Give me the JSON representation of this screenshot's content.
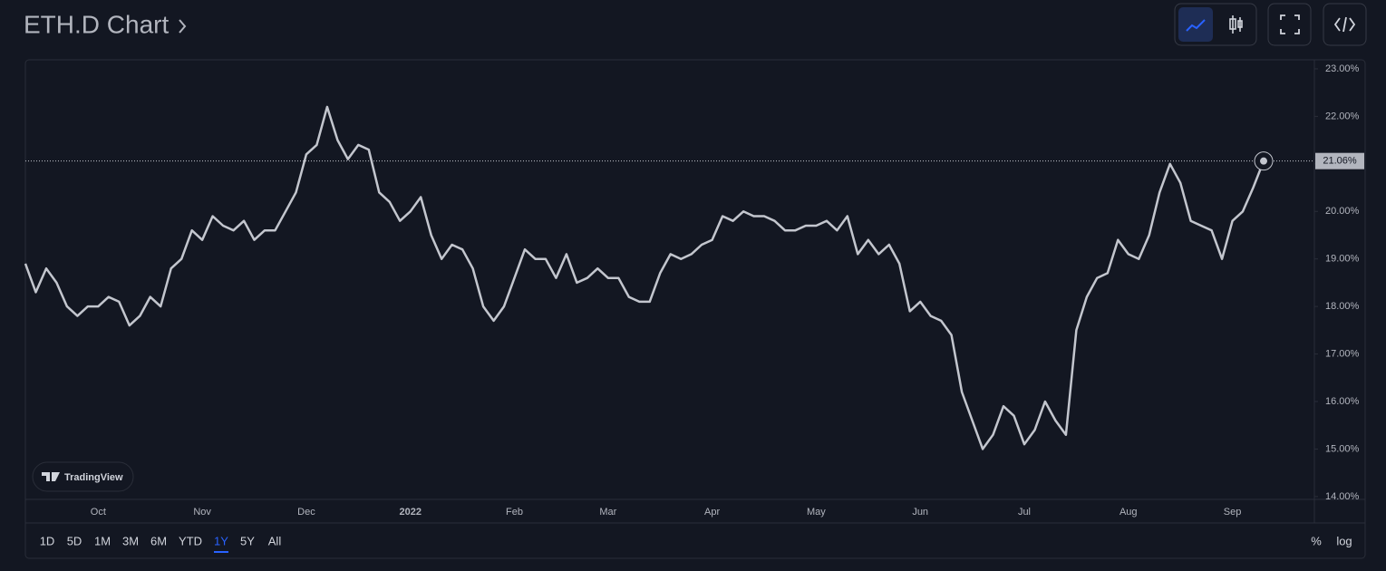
{
  "header": {
    "title": "ETH.D Chart"
  },
  "chart_data": {
    "type": "line",
    "categories": [
      null,
      null,
      null,
      null,
      null,
      null,
      null,
      "Oct",
      null,
      null,
      null,
      null,
      null,
      null,
      null,
      null,
      null,
      "Nov",
      null,
      null,
      null,
      null,
      null,
      null,
      null,
      null,
      null,
      "Dec",
      null,
      null,
      null,
      null,
      null,
      null,
      null,
      null,
      null,
      "2022",
      null,
      null,
      null,
      null,
      null,
      null,
      null,
      null,
      null,
      "Feb",
      null,
      null,
      null,
      null,
      null,
      null,
      null,
      null,
      "Mar",
      null,
      null,
      null,
      null,
      null,
      null,
      null,
      null,
      null,
      "Apr",
      null,
      null,
      null,
      null,
      null,
      null,
      null,
      null,
      null,
      "May",
      null,
      null,
      null,
      null,
      null,
      null,
      null,
      null,
      null,
      "Jun",
      null,
      null,
      null,
      null,
      null,
      null,
      null,
      null,
      null,
      "Jul",
      null,
      null,
      null,
      null,
      null,
      null,
      null,
      null,
      null,
      "Aug",
      null,
      null,
      null,
      null,
      null,
      null,
      null,
      null,
      null,
      "Sep",
      null,
      null,
      null
    ],
    "values": [
      18.9,
      18.3,
      18.8,
      18.5,
      18.0,
      17.8,
      18.0,
      18.0,
      18.2,
      18.1,
      17.6,
      17.8,
      18.2,
      18.0,
      18.8,
      19.0,
      19.6,
      19.4,
      19.9,
      19.7,
      19.6,
      19.8,
      19.4,
      19.6,
      19.6,
      20.0,
      20.4,
      21.2,
      21.4,
      22.2,
      21.5,
      21.1,
      21.4,
      21.3,
      20.4,
      20.2,
      19.8,
      20.0,
      20.3,
      19.5,
      19.0,
      19.3,
      19.2,
      18.8,
      18.0,
      17.7,
      18.0,
      18.6,
      19.2,
      19.0,
      19.0,
      18.6,
      19.1,
      18.5,
      18.6,
      18.8,
      18.6,
      18.6,
      18.2,
      18.1,
      18.1,
      18.7,
      19.1,
      19.0,
      19.1,
      19.3,
      19.4,
      19.9,
      19.8,
      20.0,
      19.9,
      19.9,
      19.8,
      19.6,
      19.6,
      19.7,
      19.7,
      19.8,
      19.6,
      19.9,
      19.1,
      19.4,
      19.1,
      19.3,
      18.9,
      17.9,
      18.1,
      17.8,
      17.7,
      17.4,
      16.2,
      15.6,
      15.0,
      15.3,
      15.9,
      15.7,
      15.1,
      15.4,
      16.0,
      15.6,
      15.3,
      17.5,
      18.2,
      18.6,
      18.7,
      19.4,
      19.1,
      19.0,
      19.5,
      20.4,
      21.0,
      20.6,
      19.8,
      19.7,
      19.6,
      19.0,
      19.8,
      20.0,
      20.5,
      21.06
    ],
    "value_labels": [
      null,
      null,
      null,
      null,
      null,
      null,
      null,
      null,
      null,
      null,
      null,
      null,
      null,
      null,
      null,
      null,
      null,
      null,
      null,
      null,
      null,
      null,
      null,
      null,
      null,
      null,
      null,
      null,
      null,
      null,
      null,
      null,
      null,
      null,
      null,
      null,
      null,
      null,
      null,
      null,
      null,
      null,
      null,
      null,
      null,
      null,
      null,
      null,
      null,
      null,
      null,
      null,
      null,
      null,
      null,
      null,
      null,
      null,
      null,
      null,
      null,
      null,
      null,
      null,
      null,
      null,
      null,
      null,
      null,
      null,
      null,
      null,
      null,
      null,
      null,
      null,
      null,
      null,
      null,
      null,
      null,
      null,
      null,
      null,
      null,
      null,
      null,
      null,
      null,
      null,
      null,
      null,
      null,
      null,
      null,
      null,
      null,
      null,
      null,
      null,
      null,
      null,
      null,
      null,
      null,
      null,
      null,
      null,
      null,
      null,
      null,
      null,
      null,
      null,
      null,
      null,
      null,
      null,
      null,
      "21.06%"
    ],
    "color": "#c3c6ce",
    "ylim": [
      13.94,
      23.19
    ],
    "yticks": [
      {
        "value": 14,
        "label": "14.00%"
      },
      {
        "value": 15,
        "label": "15.00%"
      },
      {
        "value": 16,
        "label": "16.00%"
      },
      {
        "value": 17,
        "label": "17.00%"
      },
      {
        "value": 18,
        "label": "18.00%"
      },
      {
        "value": 19,
        "label": "19.00%"
      },
      {
        "value": 20,
        "label": "20.00%"
      },
      {
        "value": 21,
        "label": "21.00%"
      },
      {
        "value": 22,
        "label": "22.00%"
      },
      {
        "value": 23,
        "label": "23.00%"
      }
    ]
  },
  "logo": "TradingView",
  "ranges": {
    "buttons": [
      "1D",
      "5D",
      "1M",
      "3M",
      "6M",
      "YTD",
      "1Y",
      "5Y",
      "All"
    ],
    "active": 6
  },
  "options": [
    "%",
    "log"
  ]
}
